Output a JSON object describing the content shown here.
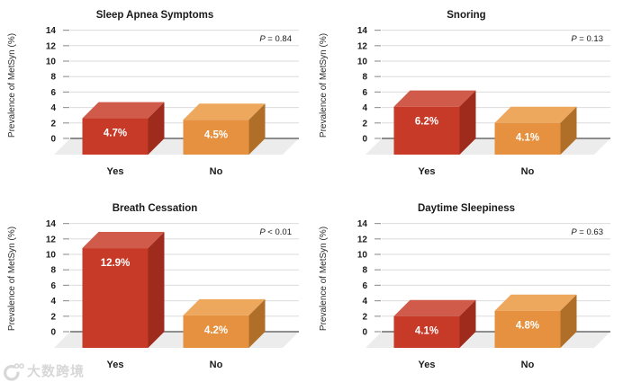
{
  "palette": {
    "red": {
      "front": "#C73A28",
      "top": "#D05B4B",
      "side": "#9E2B1C"
    },
    "orange": {
      "front": "#E6913F",
      "top": "#EDA85E",
      "side": "#B06F28"
    },
    "floor": "#ECECEC",
    "gridline": "#DBDBDB",
    "tick": "#9B9B9B",
    "zero_line": "#6B6B6B",
    "text": "#1A1A1A",
    "ylabel_color": "#2E2E2E",
    "bar_label_color": "#FFFFFF"
  },
  "chart_data": [
    {
      "type": "bar",
      "title": "Sleep Apnea Symptoms",
      "p_value": "P = 0.84",
      "categories": [
        "Yes",
        "No"
      ],
      "values": [
        4.7,
        4.5
      ],
      "value_labels": [
        "4.7%",
        "4.5%"
      ],
      "series_colors": [
        "red",
        "orange"
      ],
      "ylabel": "Prevalence of MetSyn (%)",
      "yticks": [
        0,
        2,
        4,
        6,
        8,
        10,
        12,
        14
      ],
      "ylim": [
        0,
        14
      ],
      "grid": true,
      "legend": "none"
    },
    {
      "type": "bar",
      "title": "Snoring",
      "p_value": "P = 0.13",
      "categories": [
        "Yes",
        "No"
      ],
      "values": [
        6.2,
        4.1
      ],
      "value_labels": [
        "6.2%",
        "4.1%"
      ],
      "series_colors": [
        "red",
        "orange"
      ],
      "ylabel": "Prevalence of MetSyn (%)",
      "yticks": [
        0,
        2,
        4,
        6,
        8,
        10,
        12,
        14
      ],
      "ylim": [
        0,
        14
      ],
      "grid": true,
      "legend": "none"
    },
    {
      "type": "bar",
      "title": "Breath Cessation",
      "p_value": "P < 0.01",
      "categories": [
        "Yes",
        "No"
      ],
      "values": [
        12.9,
        4.2
      ],
      "value_labels": [
        "12.9%",
        "4.2%"
      ],
      "series_colors": [
        "red",
        "orange"
      ],
      "ylabel": "Prevalence of MetSyn (%)",
      "yticks": [
        0,
        2,
        4,
        6,
        8,
        10,
        12,
        14
      ],
      "ylim": [
        0,
        14
      ],
      "grid": true,
      "legend": "none"
    },
    {
      "type": "bar",
      "title": "Daytime Sleepiness",
      "p_value": "P = 0.63",
      "categories": [
        "Yes",
        "No"
      ],
      "values": [
        4.1,
        4.8
      ],
      "value_labels": [
        "4.1%",
        "4.8%"
      ],
      "series_colors": [
        "red",
        "orange"
      ],
      "ylabel": "Prevalence of MetSyn (%)",
      "yticks": [
        0,
        2,
        4,
        6,
        8,
        10,
        12,
        14
      ],
      "ylim": [
        0,
        14
      ],
      "grid": true,
      "legend": "none"
    }
  ],
  "watermark": {
    "text": "大数跨境",
    "icon": "crescent-logo-icon"
  }
}
